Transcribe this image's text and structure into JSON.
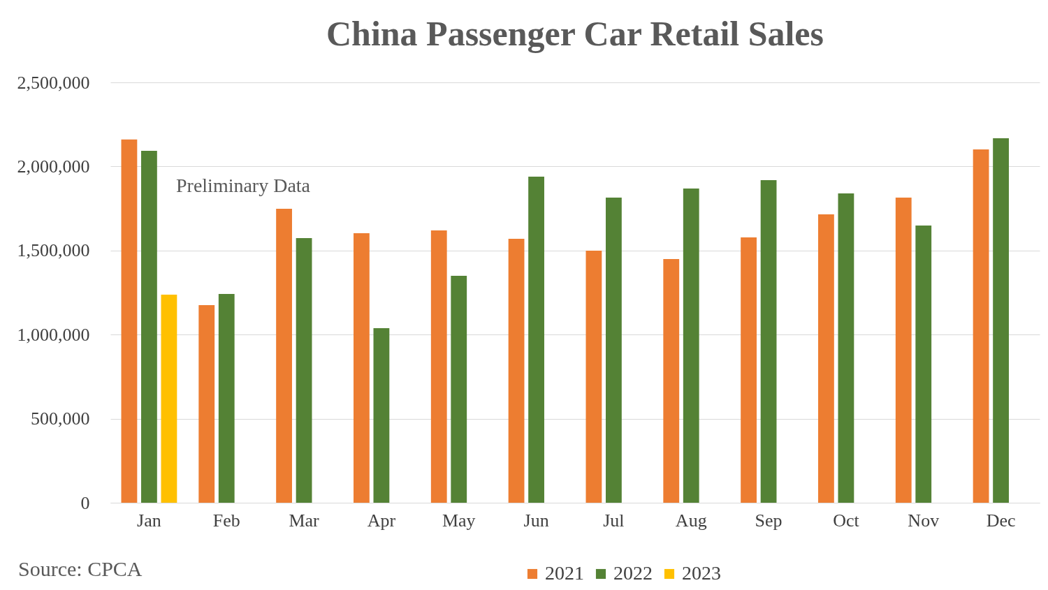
{
  "chart_data": {
    "type": "bar",
    "title": "China Passenger Car Retail Sales",
    "categories": [
      "Jan",
      "Feb",
      "Mar",
      "Apr",
      "May",
      "Jun",
      "Jul",
      "Aug",
      "Sep",
      "Oct",
      "Nov",
      "Dec"
    ],
    "series": [
      {
        "name": "2021",
        "color": "#ed7d31",
        "values": [
          2160000,
          1175000,
          1748000,
          1603000,
          1620000,
          1570000,
          1499000,
          1449000,
          1578000,
          1715000,
          1815000,
          2101000
        ]
      },
      {
        "name": "2022",
        "color": "#548235",
        "values": [
          2093000,
          1242000,
          1574000,
          1038000,
          1350000,
          1939000,
          1815000,
          1869000,
          1919000,
          1840000,
          1649000,
          2168000
        ]
      },
      {
        "name": "2023",
        "color": "#ffc000",
        "values": [
          1238000,
          null,
          null,
          null,
          null,
          null,
          null,
          null,
          null,
          null,
          null,
          null
        ]
      }
    ],
    "ylim": [
      0,
      2500000
    ],
    "yticks": [
      0,
      {
        "value": 500000,
        "label": "500,000"
      },
      {
        "value": 1000000,
        "label": "1,000,000"
      },
      {
        "value": 1500000,
        "label": "1,500,000"
      },
      {
        "value": 2000000,
        "label": "2,000,000"
      },
      {
        "value": 2500000,
        "label": "2,500,000"
      }
    ],
    "grid": "y",
    "legend": "bottom",
    "annotations": [
      "Preliminary Data",
      "Source: CPCA"
    ]
  }
}
